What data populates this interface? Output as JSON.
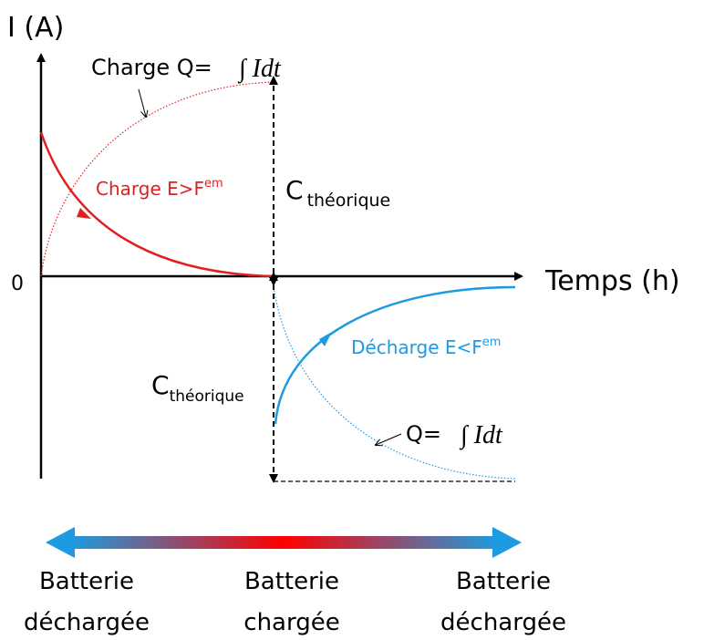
{
  "axes": {
    "y_label": "I (A)",
    "x_label": "Temps (h)",
    "origin": "0"
  },
  "charge": {
    "q_label": "Charge Q=",
    "q_formula": "∫ Idt",
    "curve_label": "Charge E>F",
    "curve_label_sup": "em",
    "capacity": "C",
    "capacity_sub": "théorique"
  },
  "discharge": {
    "curve_label": "Décharge E<F",
    "curve_label_sup": "em",
    "capacity": "C",
    "capacity_sub": "théorique",
    "q_label": "Q=",
    "q_formula": "∫ Idt"
  },
  "states": [
    {
      "line1": "Batterie",
      "line2": "déchargée"
    },
    {
      "line1": "Batterie",
      "line2": "chargée"
    },
    {
      "line1": "Batterie",
      "line2": "déchargée"
    }
  ]
}
